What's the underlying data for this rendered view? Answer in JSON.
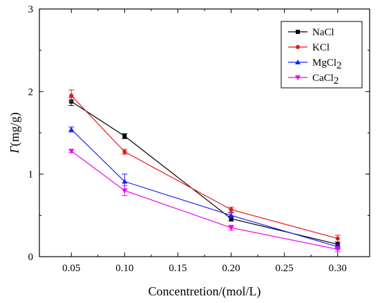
{
  "chart_data": {
    "type": "line",
    "xlabel": "Concentretion/(mol/L)",
    "ylabel_symbol": "Γ",
    "ylabel_unit": "(mg/g)",
    "xlim": [
      0.02,
      0.33
    ],
    "ylim": [
      0,
      3
    ],
    "x_ticks": [
      0.05,
      0.1,
      0.15,
      0.2,
      0.25,
      0.3
    ],
    "x_tick_labels": [
      "0.05",
      "0.10",
      "0.15",
      "0.20",
      "0.25",
      "0.30"
    ],
    "y_ticks": [
      0,
      1,
      2,
      3
    ],
    "y_tick_labels": [
      "0",
      "1",
      "2",
      "3"
    ],
    "grid": false,
    "legend_position": "top-right",
    "x": [
      0.05,
      0.1,
      0.2,
      0.3
    ],
    "series": [
      {
        "name": "NaCl",
        "base": "NaCl",
        "sub": "",
        "color": "#000000",
        "marker": "square",
        "values": [
          1.88,
          1.46,
          0.46,
          0.15
        ],
        "errors": [
          0.05,
          0.03,
          0.03,
          0.03
        ]
      },
      {
        "name": "KCl",
        "base": "KCl",
        "sub": "",
        "color": "#e8141b",
        "marker": "circle",
        "values": [
          1.95,
          1.27,
          0.57,
          0.22
        ],
        "errors": [
          0.07,
          0.03,
          0.03,
          0.04
        ]
      },
      {
        "name": "MgCl2",
        "base": "MgCl",
        "sub": "2",
        "color": "#1e1eff",
        "marker": "triangle-up",
        "values": [
          1.54,
          0.91,
          0.5,
          0.12
        ],
        "errors": [
          0.03,
          0.09,
          0.03,
          0.03
        ]
      },
      {
        "name": "CaCl2",
        "base": "CaCl",
        "sub": "2",
        "color": "#ee00ee",
        "marker": "triangle-down",
        "values": [
          1.28,
          0.8,
          0.35,
          0.09
        ],
        "errors": [
          0.02,
          0.06,
          0.03,
          0.03
        ]
      }
    ]
  }
}
